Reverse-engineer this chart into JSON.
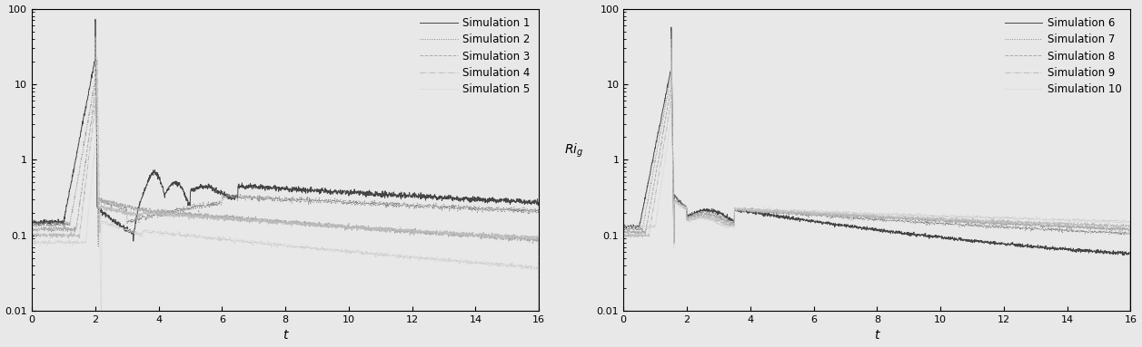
{
  "xlim": [
    0,
    16
  ],
  "ylim_log": [
    0.01,
    100
  ],
  "xlabel": "t",
  "ylabel_right": "$Ri_{g}$",
  "xticks": [
    0,
    2,
    4,
    6,
    8,
    10,
    12,
    14,
    16
  ],
  "legend_left": [
    "Simulation 1",
    "Simulation 2",
    "Simulation 3",
    "Simulation 4",
    "Simulation 5"
  ],
  "legend_right": [
    "Simulation 6",
    "Simulation 7",
    "Simulation 8",
    "Simulation 9",
    "Simulation 10"
  ],
  "colors": [
    "#444444",
    "#888888",
    "#aaaaaa",
    "#bbbbbb",
    "#cccccc"
  ],
  "linestyles_left": [
    "-",
    ":",
    "--",
    "-.",
    ":"
  ],
  "linestyles_right": [
    "-",
    ":",
    "--",
    "-.",
    ":"
  ],
  "bg_color": "#e8e8e8"
}
